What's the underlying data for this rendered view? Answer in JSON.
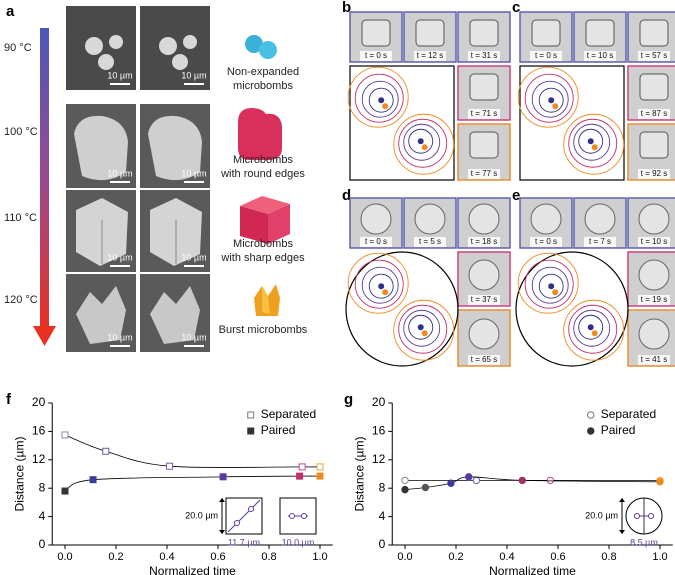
{
  "panel_labels": [
    "a",
    "b",
    "c",
    "d",
    "e",
    "f",
    "g"
  ],
  "temperatures": [
    "90 °C",
    "100 °C",
    "110 °C",
    "120 °C"
  ],
  "scale_bars": [
    "10 µm",
    "10 µm",
    "10 µm",
    "10 µm",
    "10 µm",
    "10 µm",
    "10 µm",
    "10 µm"
  ],
  "microbomb_labels": [
    [
      "Non-expanded",
      "microbombs"
    ],
    [
      "Microbombs",
      "with round edges"
    ],
    [
      "Microbombs",
      "with sharp edges"
    ],
    [
      "Burst microbombs"
    ]
  ],
  "time_labels": [
    [
      "t = 0 s",
      "t = 12 s",
      "t = 31 s",
      "t = 71 s",
      "t = 77 s"
    ],
    [
      "t = 0 s",
      "t = 10 s",
      "t = 57 s",
      "t = 87 s",
      "t = 92 s"
    ],
    [
      "t = 0 s",
      "t = 5 s",
      "t = 18 s",
      "t = 37 s",
      "t = 65 s"
    ],
    [
      "t = 0 s",
      "t = 7 s",
      "t = 10 s",
      "t = 19 s",
      "t = 41 s"
    ]
  ],
  "chart_data": [
    {
      "type": "scatter",
      "trend_line": true,
      "x_label": "Normalized time",
      "y_label": "Distance (µm)",
      "xlim": [
        -0.05,
        1.05
      ],
      "ylim": [
        0,
        20
      ],
      "xticks": [
        {
          "value": 0,
          "label": "0.0"
        },
        {
          "value": 0.2,
          "label": "0.2"
        },
        {
          "value": 0.4,
          "label": "0.4"
        },
        {
          "value": 0.6,
          "label": "0.6"
        },
        {
          "value": 0.8,
          "label": "0.8"
        },
        {
          "value": 1,
          "label": "1.0"
        }
      ],
      "yticks": [
        0,
        4,
        8,
        12,
        16,
        20
      ],
      "legend": "upper right",
      "series": [
        {
          "name": "Separated",
          "marker": "square",
          "filled": false,
          "color": "#777777",
          "colors": [
            "#8a8ab0",
            "#6b5bb0",
            "#7a5aa8",
            "#c04a90",
            "#f0a030"
          ],
          "x": [
            0,
            0.16,
            0.41,
            0.93,
            1.0
          ],
          "values": [
            15.5,
            13.2,
            11.1,
            11.0,
            11.0
          ]
        },
        {
          "name": "Paired",
          "marker": "square",
          "filled": true,
          "color": "#333333",
          "colors": [
            "#333333",
            "#3b3b9c",
            "#5a3aa0",
            "#c0306a",
            "#f08a20"
          ],
          "x": [
            0,
            0.11,
            0.62,
            0.92,
            1.0
          ],
          "values": [
            7.6,
            9.2,
            9.6,
            9.7,
            9.7
          ]
        }
      ],
      "annotations": [
        "20.0 µm",
        "11.7 µm",
        "10.0 µm"
      ]
    },
    {
      "type": "scatter",
      "trend_line": true,
      "x_label": "Normalized time",
      "y_label": "Distance (µm)",
      "xlim": [
        -0.05,
        1.05
      ],
      "ylim": [
        0,
        20
      ],
      "xticks": [
        {
          "value": 0,
          "label": "0.0"
        },
        {
          "value": 0.2,
          "label": "0.2"
        },
        {
          "value": 0.4,
          "label": "0.4"
        },
        {
          "value": 0.6,
          "label": "0.6"
        },
        {
          "value": 0.8,
          "label": "0.8"
        },
        {
          "value": 1,
          "label": "1.0"
        }
      ],
      "yticks": [
        0,
        4,
        8,
        12,
        16,
        20
      ],
      "legend": "upper right",
      "series": [
        {
          "name": "Separated",
          "marker": "circle",
          "filled": false,
          "color": "#777777",
          "colors": [
            "#888888",
            "#6b5bb0",
            "#c04a90",
            "#f0a030"
          ],
          "x": [
            0,
            0.28,
            0.57,
            1.0
          ],
          "values": [
            9.1,
            9.1,
            9.1,
            9.1
          ]
        },
        {
          "name": "Paired",
          "marker": "circle",
          "filled": true,
          "color": "#333333",
          "colors": [
            "#333333",
            "#555555",
            "#3b3b9c",
            "#5a3aa0",
            "#a0306a",
            "#f08a20"
          ],
          "x": [
            0,
            0.08,
            0.18,
            0.25,
            0.46,
            1.0
          ],
          "values": [
            7.8,
            8.1,
            8.7,
            9.6,
            9.1,
            8.9
          ]
        }
      ],
      "annotations": [
        "20.0 µm",
        "8.5 µm"
      ]
    }
  ]
}
